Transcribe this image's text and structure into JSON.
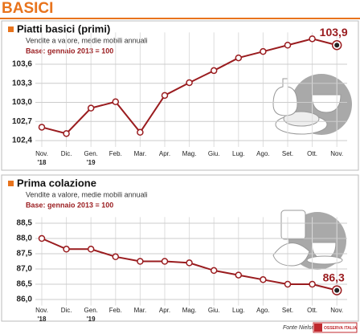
{
  "header": {
    "title": "BASICI"
  },
  "chart_data": [
    {
      "type": "line",
      "title": "Piatti basici (primi)",
      "subtitle": "Vendite a valore, medie mobili annuali",
      "note": "Base: gennaio 2013 = 100",
      "categories": [
        "Nov.",
        "Dic.",
        "Gen.",
        "Feb.",
        "Mar.",
        "Apr.",
        "Mag.",
        "Giu.",
        "Lug.",
        "Ago.",
        "Set.",
        "Ott.",
        "Nov."
      ],
      "category_years": [
        "'18",
        null,
        "'19",
        null,
        null,
        null,
        null,
        null,
        null,
        null,
        null,
        null,
        null
      ],
      "values": [
        102.61,
        102.51,
        102.91,
        103.01,
        102.53,
        103.11,
        103.31,
        103.5,
        103.7,
        103.8,
        103.9,
        104.0,
        103.9
      ],
      "value_labels": [
        null,
        null,
        null,
        null,
        null,
        null,
        null,
        null,
        null,
        null,
        null,
        null,
        "103,9"
      ],
      "color": "#9a1c1f",
      "ylim": [
        102.3,
        104.1
      ],
      "yticks": [
        {
          "value": 102.4,
          "label": "102,4"
        },
        {
          "value": 102.7,
          "label": "102,7"
        },
        {
          "value": 103.0,
          "label": "103,0"
        },
        {
          "value": 103.3,
          "label": "103,3"
        },
        {
          "value": 103.6,
          "label": "103,6"
        }
      ],
      "grid": true
    },
    {
      "type": "line",
      "title": "Prima colazione",
      "subtitle": "Vendite a valore, medie mobili annuali",
      "note": "Base: gennaio 2013 = 100",
      "categories": [
        "Nov.",
        "Dic.",
        "Gen.",
        "Feb.",
        "Mar.",
        "Apr.",
        "Mag.",
        "Giu.",
        "Lug.",
        "Ago.",
        "Set.",
        "Ott.",
        "Nov."
      ],
      "category_years": [
        "'18",
        null,
        "'19",
        null,
        null,
        null,
        null,
        null,
        null,
        null,
        null,
        null,
        null
      ],
      "values": [
        88.0,
        87.65,
        87.65,
        87.4,
        87.25,
        87.25,
        87.2,
        86.95,
        86.8,
        86.65,
        86.5,
        86.5,
        86.3
      ],
      "value_labels": [
        null,
        null,
        null,
        null,
        null,
        null,
        null,
        null,
        null,
        null,
        null,
        null,
        "86,3"
      ],
      "color": "#9a1c1f",
      "ylim": [
        85.8,
        88.7
      ],
      "yticks": [
        {
          "value": 86.0,
          "label": "86,0"
        },
        {
          "value": 86.5,
          "label": "86,5"
        },
        {
          "value": 87.0,
          "label": "87,0"
        },
        {
          "value": 87.5,
          "label": "87,5"
        },
        {
          "value": 88.0,
          "label": "88,0"
        },
        {
          "value": 88.5,
          "label": "88,5"
        }
      ],
      "grid": true
    }
  ],
  "footer": {
    "source": "Fonte Nielsen",
    "logo": "OSSERVA ITALIA"
  }
}
